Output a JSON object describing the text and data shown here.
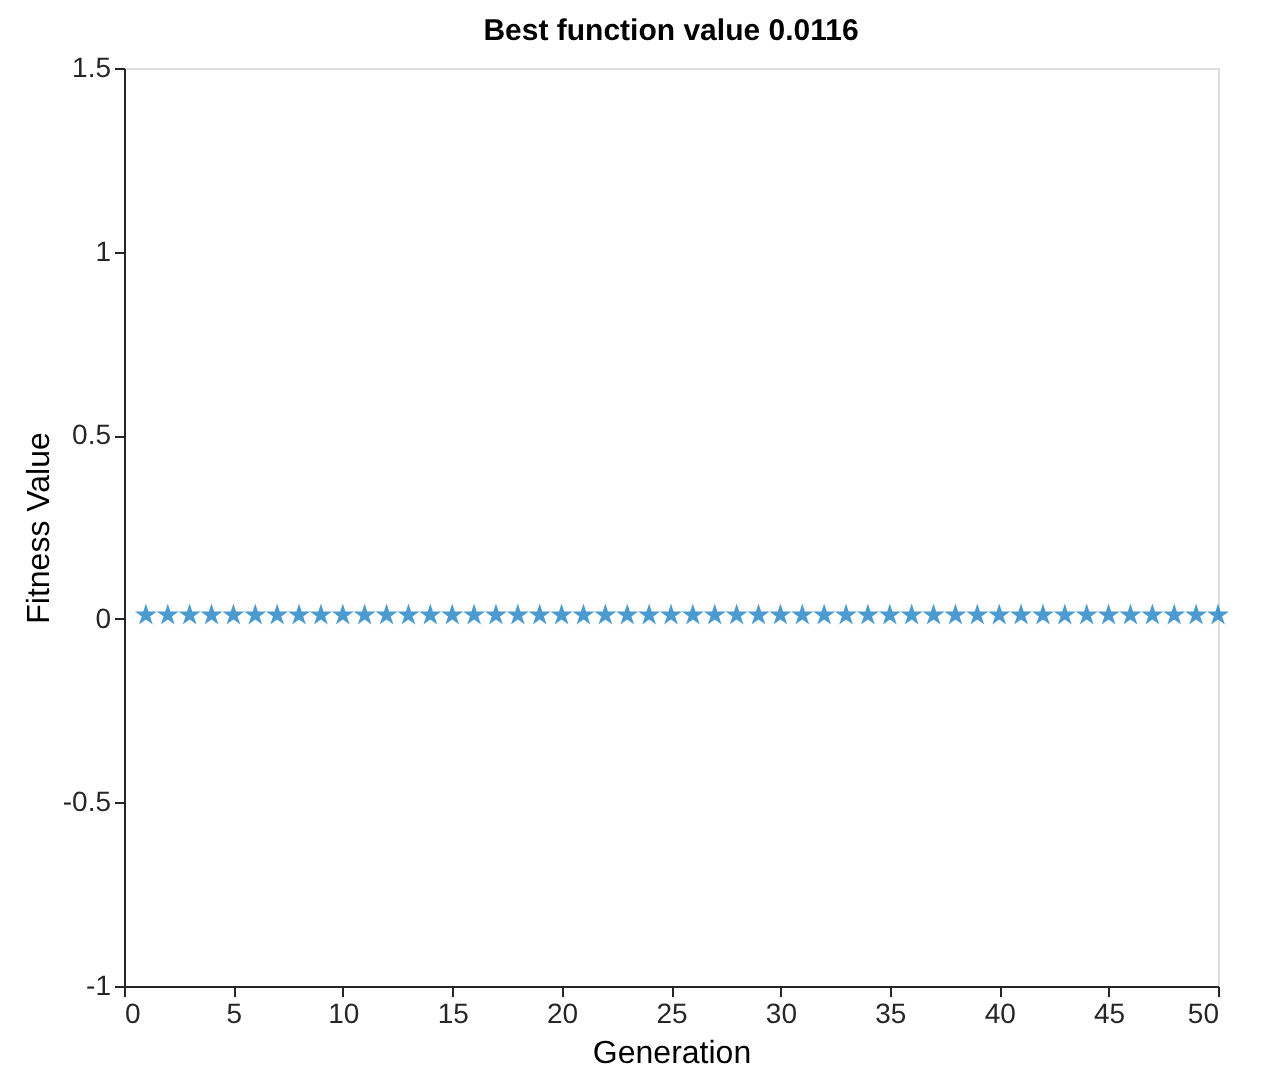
{
  "chart_data": {
    "type": "scatter",
    "title": "Best function value 0.0116",
    "xlabel": "Generation",
    "ylabel": "Fitness Value",
    "x": [
      1,
      2,
      3,
      4,
      5,
      6,
      7,
      8,
      9,
      10,
      11,
      12,
      13,
      14,
      15,
      16,
      17,
      18,
      19,
      20,
      21,
      22,
      23,
      24,
      25,
      26,
      27,
      28,
      29,
      30,
      31,
      32,
      33,
      34,
      35,
      36,
      37,
      38,
      39,
      40,
      41,
      42,
      43,
      44,
      45,
      46,
      47,
      48,
      49,
      50
    ],
    "series": [
      {
        "color": "#0072bd",
        "values": [
          0.01,
          0.01,
          0.01,
          0.01,
          0.01,
          0.01,
          0.01,
          0.01,
          0.01,
          0.01,
          0.01,
          0.01,
          0.01,
          0.01,
          0.01,
          0.01,
          0.01,
          0.01,
          0.01,
          0.01,
          0.01,
          0.01,
          0.01,
          0.01,
          0.01,
          0.01,
          0.01,
          0.01,
          0.01,
          0.01,
          0.01,
          0.01,
          0.01,
          0.01,
          0.01,
          0.01,
          0.01,
          0.01,
          0.01,
          0.01,
          0.01,
          0.01,
          0.01,
          0.01,
          0.01,
          0.01,
          0.01,
          0.01,
          0.01,
          0.01
        ]
      }
    ],
    "xlim": [
      0,
      50
    ],
    "xticks": [
      0,
      5,
      10,
      15,
      20,
      25,
      30,
      35,
      40,
      45,
      50
    ],
    "ylim": [
      -1,
      1.5
    ],
    "yticks": [
      {
        "value": -1,
        "label": "-1"
      },
      -0.5,
      {
        "value": 0,
        "label": "0"
      },
      0.5,
      {
        "value": 1,
        "label": "1"
      },
      1.5
    ],
    "marker": "star",
    "grid": false,
    "legend": false
  }
}
